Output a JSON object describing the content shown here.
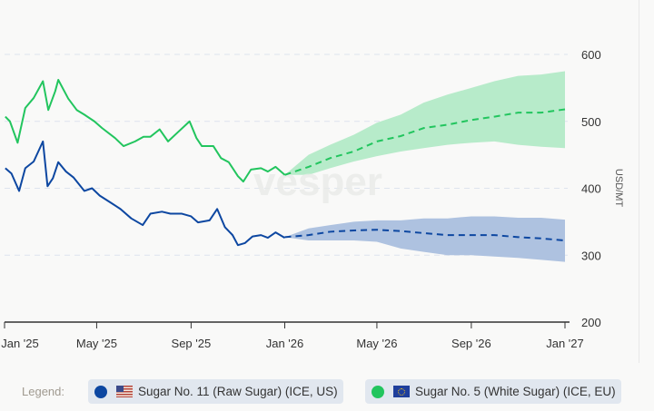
{
  "chart_data": {
    "type": "line",
    "title": "",
    "xlabel": "",
    "ylabel": "USD/MT",
    "ylim": [
      200,
      600
    ],
    "yticks": [
      "200",
      "300",
      "400",
      "500",
      "600"
    ],
    "xticks": [
      {
        "date": "2025-01-01",
        "label": "Jan '25"
      },
      {
        "date": "2025-05-01",
        "label": "May '25"
      },
      {
        "date": "2025-09-01",
        "label": "Sep '25"
      },
      {
        "date": "2026-01-01",
        "label": "Jan '26"
      },
      {
        "date": "2026-05-01",
        "label": "May '26"
      },
      {
        "date": "2026-09-01",
        "label": "Sep '26"
      },
      {
        "date": "2027-01-01",
        "label": "Jan '27"
      }
    ],
    "grid": "horizontal dashed",
    "axis_side": "right",
    "watermark": "vesper",
    "series": [
      {
        "name": "Sugar No. 11 (Raw Sugar) (ICE, US)",
        "color": "#0d47a1",
        "band_color": "#aec2e0",
        "historical": [
          [
            "2025-01-02",
            430
          ],
          [
            "2025-01-10",
            422
          ],
          [
            "2025-01-20",
            396
          ],
          [
            "2025-01-28",
            430
          ],
          [
            "2025-02-08",
            440
          ],
          [
            "2025-02-20",
            470
          ],
          [
            "2025-02-26",
            403
          ],
          [
            "2025-03-05",
            415
          ],
          [
            "2025-03-12",
            439
          ],
          [
            "2025-03-22",
            425
          ],
          [
            "2025-04-01",
            416
          ],
          [
            "2025-04-15",
            396
          ],
          [
            "2025-04-25",
            400
          ],
          [
            "2025-05-05",
            389
          ],
          [
            "2025-05-20",
            378
          ],
          [
            "2025-06-01",
            369
          ],
          [
            "2025-06-15",
            355
          ],
          [
            "2025-06-30",
            345
          ],
          [
            "2025-07-10",
            362
          ],
          [
            "2025-07-25",
            365
          ],
          [
            "2025-08-05",
            362
          ],
          [
            "2025-08-20",
            362
          ],
          [
            "2025-09-01",
            358
          ],
          [
            "2025-09-10",
            349
          ],
          [
            "2025-09-25",
            352
          ],
          [
            "2025-10-05",
            369
          ],
          [
            "2025-10-15",
            342
          ],
          [
            "2025-10-25",
            330
          ],
          [
            "2025-11-01",
            315
          ],
          [
            "2025-11-10",
            318
          ],
          [
            "2025-11-20",
            328
          ],
          [
            "2025-12-01",
            330
          ],
          [
            "2025-12-10",
            326
          ],
          [
            "2025-12-20",
            334
          ],
          [
            "2026-01-01",
            326
          ]
        ],
        "forecast": [
          [
            "2026-01-01",
            327
          ],
          [
            "2026-02-01",
            330
          ],
          [
            "2026-03-01",
            335
          ],
          [
            "2026-04-01",
            337
          ],
          [
            "2026-05-01",
            338
          ],
          [
            "2026-06-01",
            336
          ],
          [
            "2026-07-01",
            333
          ],
          [
            "2026-08-01",
            330
          ],
          [
            "2026-09-01",
            330
          ],
          [
            "2026-10-01",
            330
          ],
          [
            "2026-11-01",
            327
          ],
          [
            "2026-12-01",
            325
          ],
          [
            "2027-01-01",
            322
          ]
        ],
        "upper": [
          327,
          340,
          345,
          350,
          352,
          352,
          355,
          355,
          358,
          358,
          356,
          356,
          353
        ],
        "lower": [
          327,
          322,
          322,
          322,
          320,
          310,
          305,
          300,
          300,
          298,
          296,
          293,
          290
        ]
      },
      {
        "name": "Sugar No. 5 (White Sugar) (ICE, EU)",
        "color": "#22c55e",
        "band_color": "#b7ebca",
        "historical": [
          [
            "2025-01-02",
            507
          ],
          [
            "2025-01-08",
            500
          ],
          [
            "2025-01-18",
            468
          ],
          [
            "2025-01-28",
            520
          ],
          [
            "2025-02-08",
            535
          ],
          [
            "2025-02-20",
            560
          ],
          [
            "2025-02-27",
            517
          ],
          [
            "2025-03-08",
            545
          ],
          [
            "2025-03-12",
            562
          ],
          [
            "2025-03-25",
            534
          ],
          [
            "2025-04-05",
            517
          ],
          [
            "2025-04-15",
            510
          ],
          [
            "2025-04-28",
            500
          ],
          [
            "2025-05-08",
            490
          ],
          [
            "2025-05-25",
            475
          ],
          [
            "2025-06-05",
            463
          ],
          [
            "2025-06-20",
            470
          ],
          [
            "2025-07-01",
            477
          ],
          [
            "2025-07-10",
            477
          ],
          [
            "2025-07-22",
            488
          ],
          [
            "2025-08-02",
            470
          ],
          [
            "2025-08-15",
            484
          ],
          [
            "2025-08-30",
            500
          ],
          [
            "2025-09-08",
            475
          ],
          [
            "2025-09-15",
            463
          ],
          [
            "2025-09-30",
            463
          ],
          [
            "2025-10-10",
            445
          ],
          [
            "2025-10-20",
            439
          ],
          [
            "2025-11-01",
            418
          ],
          [
            "2025-11-08",
            410
          ],
          [
            "2025-11-18",
            428
          ],
          [
            "2025-12-01",
            430
          ],
          [
            "2025-12-10",
            425
          ],
          [
            "2025-12-20",
            432
          ],
          [
            "2026-01-01",
            420
          ]
        ],
        "forecast": [
          [
            "2026-01-01",
            420
          ],
          [
            "2026-02-01",
            432
          ],
          [
            "2026-03-01",
            445
          ],
          [
            "2026-04-01",
            455
          ],
          [
            "2026-05-01",
            470
          ],
          [
            "2026-06-01",
            478
          ],
          [
            "2026-07-01",
            490
          ],
          [
            "2026-08-01",
            495
          ],
          [
            "2026-09-01",
            502
          ],
          [
            "2026-10-01",
            507
          ],
          [
            "2026-11-01",
            513
          ],
          [
            "2026-12-01",
            513
          ],
          [
            "2027-01-01",
            518
          ]
        ],
        "upper": [
          420,
          450,
          465,
          480,
          498,
          510,
          528,
          540,
          550,
          560,
          568,
          570,
          575
        ],
        "lower": [
          420,
          420,
          430,
          440,
          448,
          455,
          460,
          465,
          468,
          470,
          465,
          462,
          460
        ]
      }
    ]
  },
  "legend": {
    "label": "Legend:",
    "items": [
      {
        "label": "Sugar No. 11 (Raw Sugar) (ICE, US)",
        "flag": "us-flag",
        "color": "#0d47a1"
      },
      {
        "label": "Sugar No. 5 (White Sugar) (ICE, EU)",
        "flag": "eu-flag",
        "color": "#22c55e"
      }
    ]
  }
}
